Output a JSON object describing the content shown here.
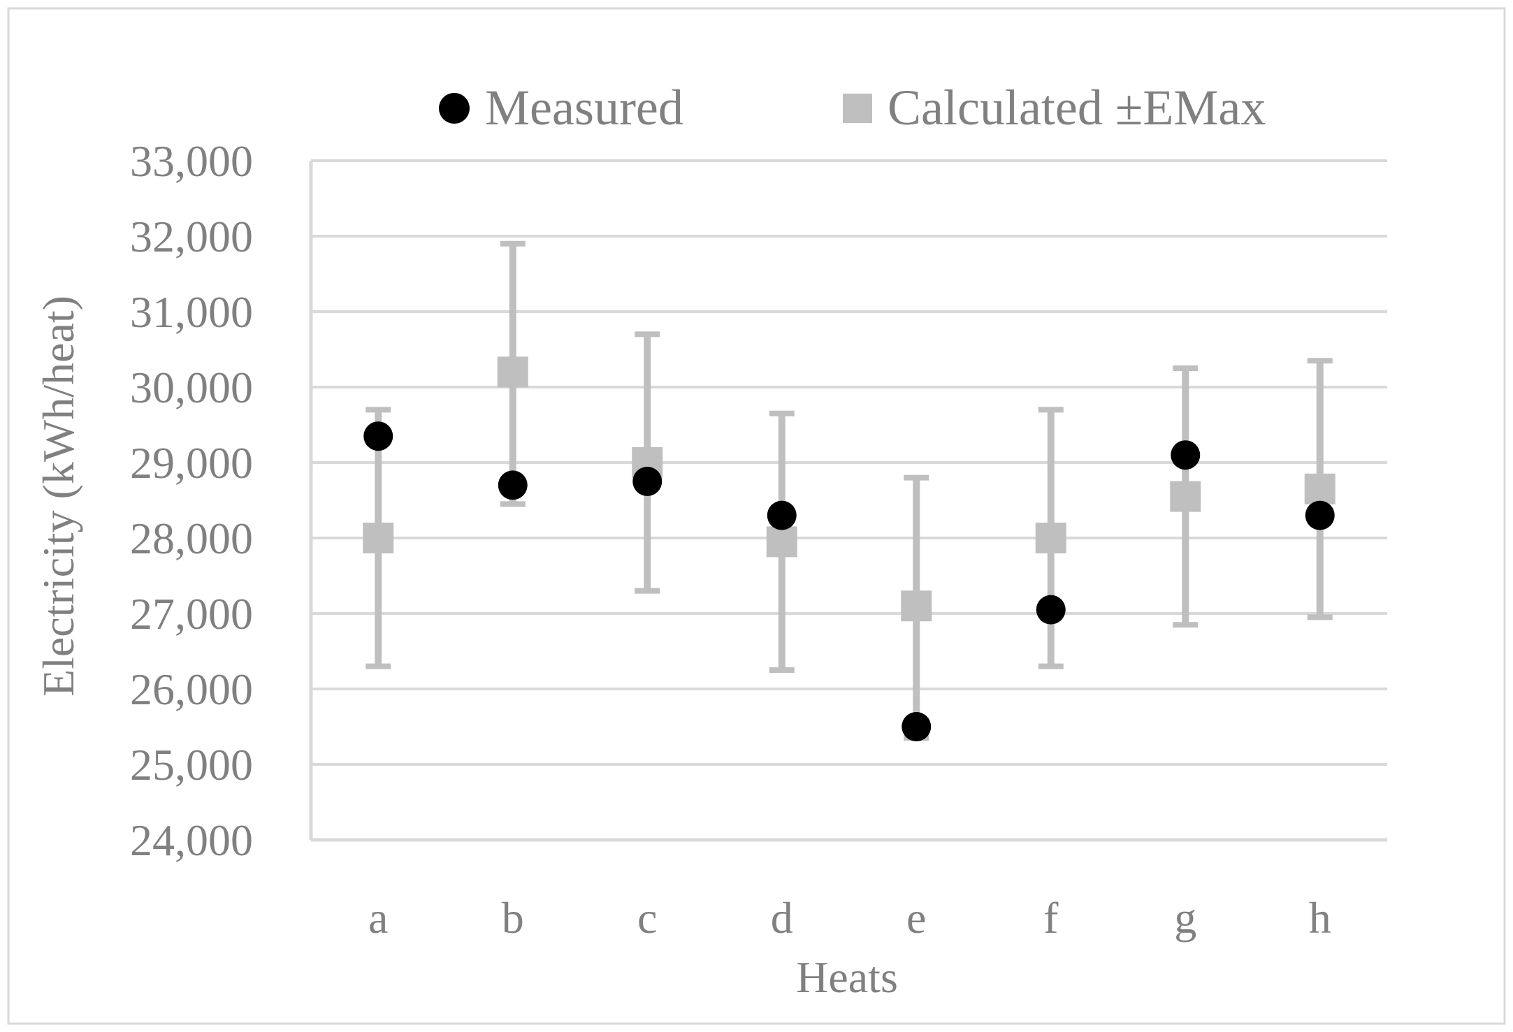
{
  "chart_data": {
    "type": "scatter",
    "title": "",
    "xlabel": "Heats",
    "ylabel": "Electricity (kWh/heat)",
    "categories": [
      "a",
      "b",
      "c",
      "d",
      "e",
      "f",
      "g",
      "h"
    ],
    "ylim": [
      24000,
      33000
    ],
    "yticks": [
      24000,
      25000,
      26000,
      27000,
      28000,
      29000,
      30000,
      31000,
      32000,
      33000
    ],
    "ytick_labels": [
      "24,000",
      "25,000",
      "26,000",
      "27,000",
      "28,000",
      "29,000",
      "30,000",
      "31,000",
      "32,000",
      "33,000"
    ],
    "grid": true,
    "legend_position": "top",
    "series": [
      {
        "name": "Measured",
        "marker": "circle",
        "color": "#000000",
        "values": [
          29350,
          28700,
          28750,
          28300,
          25500,
          27050,
          29100,
          28300
        ]
      },
      {
        "name": "Calculated ±EMax",
        "marker": "square",
        "color": "#bfbfbf",
        "values": [
          28000,
          30200,
          29000,
          27950,
          27100,
          28000,
          28550,
          28650
        ],
        "error_low": [
          26300,
          28450,
          27300,
          26250,
          25350,
          26300,
          26850,
          26950
        ],
        "error_high": [
          29700,
          31900,
          30700,
          29650,
          28800,
          29700,
          30250,
          30350
        ]
      }
    ]
  },
  "colors": {
    "axis_text": "#808080",
    "gridline": "#d9d9d9",
    "frame": "#d9d9d9"
  }
}
